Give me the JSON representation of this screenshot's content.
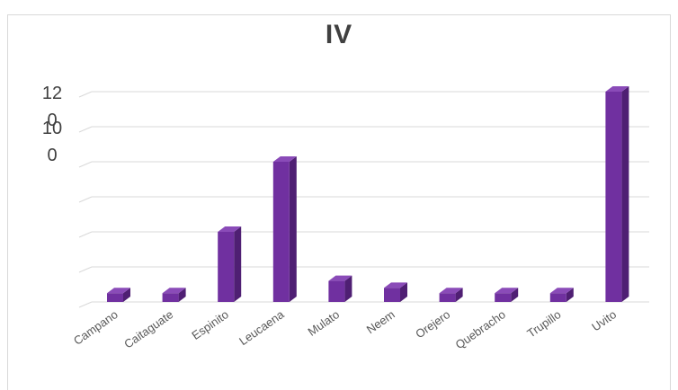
{
  "chart_data": {
    "type": "bar",
    "title": "IV",
    "categories": [
      "Campano",
      "Caitaguate",
      "Espinito",
      "Leucaena",
      "Mulato",
      "Neem",
      "Orejero",
      "Quebracho",
      "Trupillo",
      "Uvito"
    ],
    "values": [
      5,
      5,
      40,
      80,
      12,
      8,
      5,
      5,
      5,
      120
    ],
    "ylim": [
      0,
      120
    ],
    "y_tick_labels": [
      {
        "value": 120,
        "lines": [
          "12",
          "0"
        ]
      },
      {
        "value": 100,
        "lines": [
          "10",
          "0"
        ]
      }
    ],
    "grid": true,
    "legend": "none",
    "colors": {
      "bar_front": "#7030a0",
      "bar_side": "#4f1f73",
      "bar_top": "#8a4bb8",
      "grid": "#d9d9d9"
    }
  }
}
